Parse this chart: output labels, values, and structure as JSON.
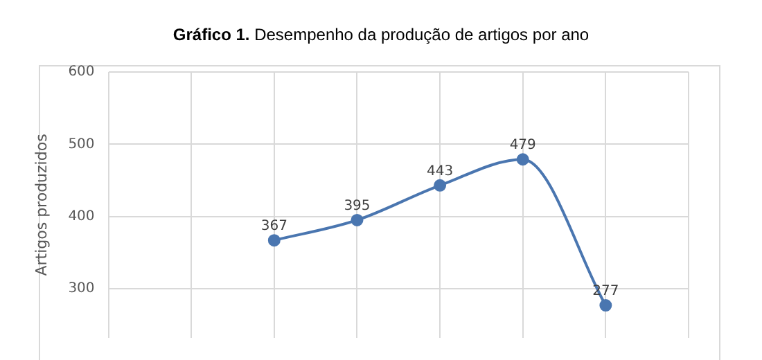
{
  "chart_data": {
    "type": "line",
    "title": "Gráfico 1.",
    "subtitle": "Desempenho da produção de artigos por ano",
    "ylabel": "Artigos produzidos",
    "categories": [
      null,
      null,
      null,
      null,
      null,
      null,
      null,
      null
    ],
    "series": [
      {
        "color": "#4a76b0",
        "values": [
          null,
          null,
          367,
          395,
          443,
          479,
          277,
          null
        ]
      }
    ],
    "ylim": [
      232,
      600
    ],
    "yticks": [
      300,
      400,
      500,
      600
    ],
    "grid": true,
    "tick_labels": "y",
    "data_labels": true,
    "marker": "circle",
    "legend": false
  }
}
